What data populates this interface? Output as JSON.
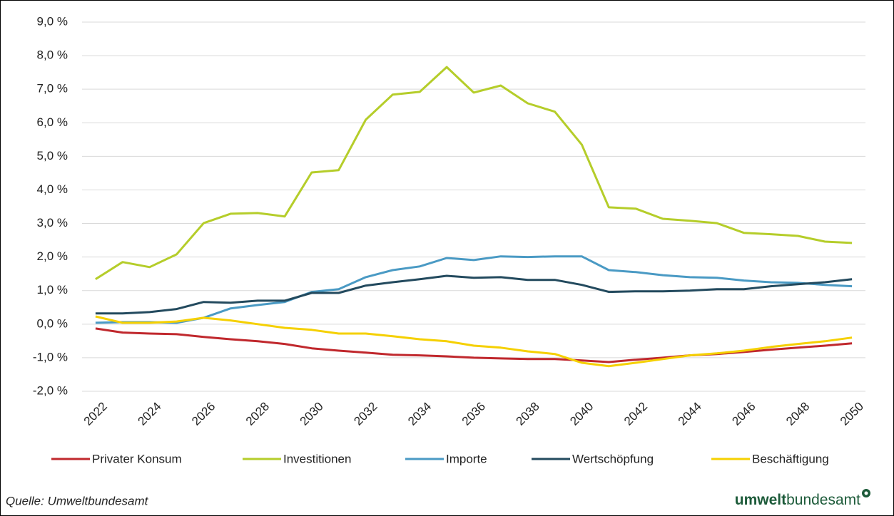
{
  "chart_data": {
    "type": "line",
    "x": [
      2022,
      2023,
      2024,
      2025,
      2026,
      2027,
      2028,
      2029,
      2030,
      2031,
      2032,
      2033,
      2034,
      2035,
      2036,
      2037,
      2038,
      2039,
      2040,
      2041,
      2042,
      2043,
      2044,
      2045,
      2046,
      2047,
      2048,
      2049,
      2050
    ],
    "xlim": [
      2021.5,
      2050.5
    ],
    "xticks": [
      2022,
      2024,
      2026,
      2028,
      2030,
      2032,
      2034,
      2036,
      2038,
      2040,
      2042,
      2044,
      2046,
      2048,
      2050
    ],
    "ylim": [
      -2,
      9
    ],
    "yticks": [
      {
        "value": -2,
        "label": "-2,0 %"
      },
      {
        "value": -1,
        "label": "-1,0 %"
      },
      {
        "value": 0,
        "label": "0,0 %"
      },
      {
        "value": 1,
        "label": "1,0 %"
      },
      {
        "value": 2,
        "label": "2,0 %"
      },
      {
        "value": 3,
        "label": "3,0 %"
      },
      {
        "value": 4,
        "label": "4,0 %"
      },
      {
        "value": 5,
        "label": "5,0 %"
      },
      {
        "value": 6,
        "label": "6,0 %"
      },
      {
        "value": 7,
        "label": "7,0 %"
      },
      {
        "value": 8,
        "label": "8,0 %"
      },
      {
        "value": 9,
        "label": "9,0 %"
      }
    ],
    "grid": true,
    "legend": "bottom",
    "series": [
      {
        "name": "Privater Konsum",
        "color": "#c0282d",
        "values": [
          -0.13,
          -0.25,
          -0.28,
          -0.3,
          -0.38,
          -0.45,
          -0.51,
          -0.59,
          -0.72,
          -0.79,
          -0.85,
          -0.91,
          -0.93,
          -0.96,
          -1.0,
          -1.02,
          -1.04,
          -1.04,
          -1.08,
          -1.13,
          -1.06,
          -1.0,
          -0.93,
          -0.89,
          -0.83,
          -0.76,
          -0.7,
          -0.64,
          -0.57
        ]
      },
      {
        "name": "Investitionen",
        "color": "#b5cd2a",
        "values": [
          1.34,
          1.85,
          1.7,
          2.08,
          3.01,
          3.29,
          3.31,
          3.21,
          4.52,
          4.59,
          6.09,
          6.84,
          6.92,
          7.66,
          6.9,
          7.11,
          6.58,
          6.33,
          5.35,
          3.48,
          3.44,
          3.14,
          3.08,
          3.01,
          2.72,
          2.68,
          2.63,
          2.46,
          2.42
        ]
      },
      {
        "name": "Importe",
        "color": "#4a9ac4",
        "values": [
          0.04,
          0.06,
          0.06,
          0.04,
          0.19,
          0.47,
          0.57,
          0.66,
          0.96,
          1.04,
          1.4,
          1.61,
          1.72,
          1.97,
          1.91,
          2.02,
          2.0,
          2.02,
          2.02,
          1.61,
          1.55,
          1.46,
          1.4,
          1.38,
          1.3,
          1.25,
          1.23,
          1.17,
          1.13
        ]
      },
      {
        "name": "Wertschöpfung",
        "color": "#234a5e",
        "values": [
          0.32,
          0.32,
          0.36,
          0.45,
          0.66,
          0.64,
          0.7,
          0.7,
          0.93,
          0.93,
          1.15,
          1.25,
          1.34,
          1.44,
          1.38,
          1.4,
          1.32,
          1.32,
          1.17,
          0.96,
          0.98,
          0.98,
          1.0,
          1.04,
          1.04,
          1.13,
          1.19,
          1.25,
          1.34
        ]
      },
      {
        "name": "Beschäftigung",
        "color": "#f5d000",
        "values": [
          0.23,
          0.04,
          0.04,
          0.08,
          0.19,
          0.11,
          0.0,
          -0.11,
          -0.17,
          -0.28,
          -0.28,
          -0.36,
          -0.45,
          -0.51,
          -0.64,
          -0.7,
          -0.81,
          -0.89,
          -1.15,
          -1.25,
          -1.15,
          -1.04,
          -0.93,
          -0.87,
          -0.79,
          -0.68,
          -0.59,
          -0.51,
          -0.4
        ]
      }
    ]
  },
  "footer": {
    "source": "Quelle: Umweltbundesamt",
    "logo_bold": "umwelt",
    "logo_regular": "bundesamt"
  }
}
